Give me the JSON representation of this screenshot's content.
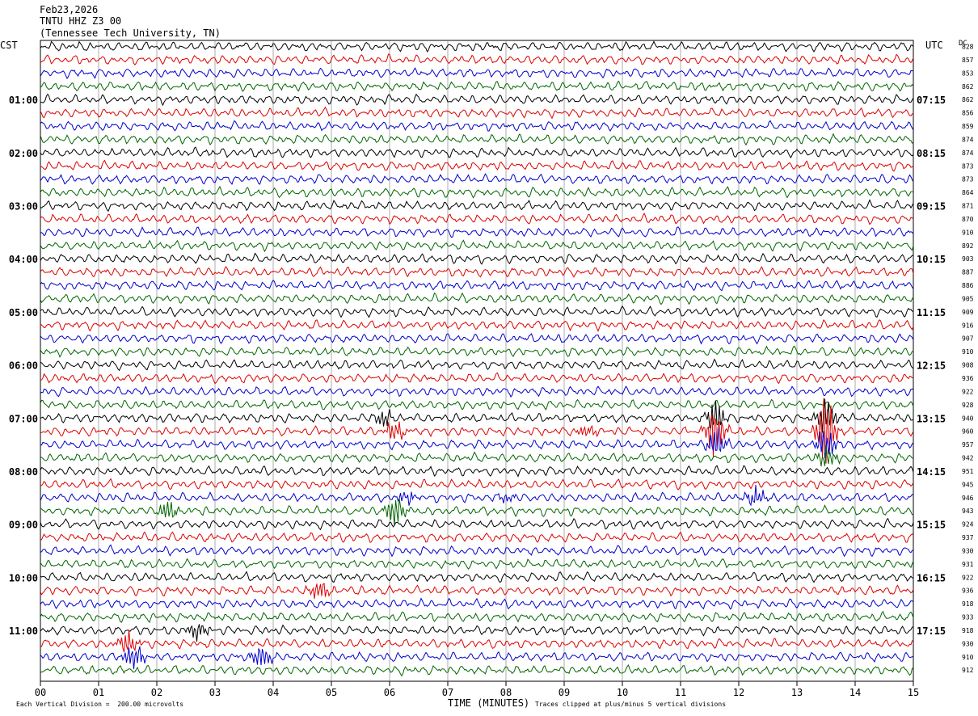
{
  "header": {
    "date": "Feb23,2026",
    "station": "TNTU HHZ Z3 00",
    "location": "(Tennessee Tech University, TN)"
  },
  "left_axis_title": "CST",
  "right_axis_title": "UTC",
  "dc_title": "DC",
  "footer": {
    "scale_note": "Each Vertical Division =  200.00 microvolts",
    "clip_note": "Traces clipped at plus/minus 5 vertical divisions",
    "xlabel": "TIME (MINUTES)"
  },
  "chart_data": {
    "type": "line",
    "title": "TNTU HHZ Z3 00",
    "xlabel": "TIME (MINUTES)",
    "xlim": [
      0,
      15
    ],
    "x_ticks": [
      "00",
      "01",
      "02",
      "03",
      "04",
      "05",
      "06",
      "07",
      "08",
      "09",
      "10",
      "11",
      "12",
      "13",
      "14",
      "15"
    ],
    "trace_colors": [
      "#000000",
      "#dd0000",
      "#0000cc",
      "#006600"
    ],
    "trace_count": 48,
    "left_hour_labels": [
      "01:00",
      "02:00",
      "03:00",
      "04:00",
      "05:00",
      "06:00",
      "07:00",
      "08:00",
      "09:00",
      "10:00",
      "11:00"
    ],
    "right_hour_labels": [
      "07:15",
      "08:15",
      "09:15",
      "10:15",
      "11:15",
      "12:15",
      "13:15",
      "14:15",
      "15:15",
      "16:15",
      "17:15"
    ],
    "dc_offsets": [
      "828",
      "857",
      "853",
      "862",
      "862",
      "856",
      "859",
      "874",
      "874",
      "873",
      "873",
      "864",
      "871",
      "870",
      "910",
      "892",
      "903",
      "887",
      "886",
      "905",
      "909",
      "916",
      "907",
      "910",
      "908",
      "936",
      "922",
      "928",
      "940",
      "960",
      "957",
      "942",
      "951",
      "945",
      "946",
      "943",
      "924",
      "937",
      "930",
      "931",
      "922",
      "936",
      "918",
      "933",
      "918",
      "930",
      "910",
      "912"
    ],
    "events": [
      {
        "trace": 28,
        "minute": 5.9,
        "amp": 0.9
      },
      {
        "trace": 29,
        "minute": 6.1,
        "amp": 1.3
      },
      {
        "trace": 29,
        "minute": 9.4,
        "amp": 0.8
      },
      {
        "trace": 29,
        "minute": 11.6,
        "amp": 3.2
      },
      {
        "trace": 29,
        "minute": 13.5,
        "amp": 3.8
      },
      {
        "trace": 28,
        "minute": 11.6,
        "amp": 1.8
      },
      {
        "trace": 30,
        "minute": 11.6,
        "amp": 1.6
      },
      {
        "trace": 28,
        "minute": 13.5,
        "amp": 2.2
      },
      {
        "trace": 30,
        "minute": 13.5,
        "amp": 2.0
      },
      {
        "trace": 31,
        "minute": 13.5,
        "amp": 1.4
      },
      {
        "trace": 34,
        "minute": 6.3,
        "amp": 0.8
      },
      {
        "trace": 34,
        "minute": 8.0,
        "amp": 0.6
      },
      {
        "trace": 34,
        "minute": 12.3,
        "amp": 1.2
      },
      {
        "trace": 35,
        "minute": 2.2,
        "amp": 1.1
      },
      {
        "trace": 35,
        "minute": 6.1,
        "amp": 1.6
      },
      {
        "trace": 41,
        "minute": 4.8,
        "amp": 1.1
      },
      {
        "trace": 44,
        "minute": 2.7,
        "amp": 1.0
      },
      {
        "trace": 45,
        "minute": 1.5,
        "amp": 1.3
      },
      {
        "trace": 46,
        "minute": 1.6,
        "amp": 1.6
      },
      {
        "trace": 46,
        "minute": 3.8,
        "amp": 1.4
      }
    ]
  }
}
